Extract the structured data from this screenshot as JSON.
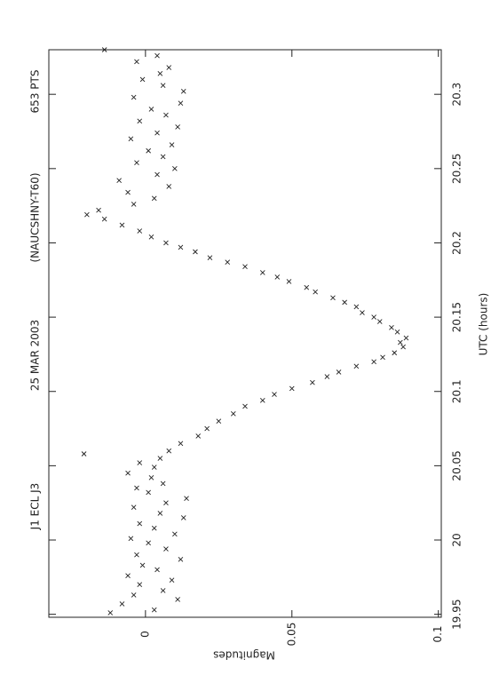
{
  "chart_data": {
    "type": "scatter",
    "title": "J1 ECL J3",
    "annotations": [
      "25 MAR 2003",
      "(NAUCSHNY-T60)",
      "653 PTS"
    ],
    "x_label": "UTC (hours)",
    "y_label": "Magnitudes",
    "color": "#222222",
    "xlim": [
      19.948,
      20.33
    ],
    "xticks": [
      19.95,
      20,
      20.05,
      20.1,
      20.15,
      20.2,
      20.25,
      20.3
    ],
    "ylim": [
      -0.033,
      0.101
    ],
    "yticks": [
      0,
      0.05,
      0.1
    ],
    "x": [
      19.951,
      19.953,
      19.957,
      19.96,
      19.963,
      19.966,
      19.97,
      19.973,
      19.976,
      19.98,
      19.983,
      19.987,
      19.99,
      19.994,
      19.998,
      20.001,
      20.004,
      20.008,
      20.011,
      20.015,
      20.018,
      20.022,
      20.025,
      20.028,
      20.032,
      20.035,
      20.038,
      20.042,
      20.045,
      20.049,
      20.052,
      20.055,
      20.058,
      20.06,
      20.065,
      20.07,
      20.075,
      20.08,
      20.085,
      20.09,
      20.094,
      20.098,
      20.102,
      20.106,
      20.11,
      20.113,
      20.117,
      20.12,
      20.123,
      20.126,
      20.13,
      20.133,
      20.136,
      20.14,
      20.143,
      20.147,
      20.15,
      20.153,
      20.157,
      20.16,
      20.163,
      20.167,
      20.17,
      20.174,
      20.177,
      20.18,
      20.184,
      20.187,
      20.19,
      20.194,
      20.197,
      20.2,
      20.204,
      20.208,
      20.212,
      20.216,
      20.219,
      20.222,
      20.226,
      20.23,
      20.234,
      20.238,
      20.242,
      20.246,
      20.25,
      20.254,
      20.258,
      20.262,
      20.266,
      20.27,
      20.274,
      20.278,
      20.282,
      20.286,
      20.29,
      20.294,
      20.298,
      20.302,
      20.306,
      20.31,
      20.314,
      20.318,
      20.322,
      20.326,
      20.33
    ],
    "values": [
      -0.012,
      0.003,
      -0.008,
      0.011,
      -0.004,
      0.006,
      -0.002,
      0.009,
      -0.006,
      0.004,
      -0.001,
      0.012,
      -0.003,
      0.007,
      0.001,
      -0.005,
      0.01,
      0.003,
      -0.002,
      0.013,
      0.005,
      -0.004,
      0.007,
      0.014,
      0.001,
      -0.003,
      0.006,
      0.002,
      -0.006,
      0.003,
      -0.002,
      0.005,
      -0.021,
      0.008,
      0.012,
      0.018,
      0.021,
      0.025,
      0.03,
      0.034,
      0.04,
      0.044,
      0.05,
      0.057,
      0.062,
      0.066,
      0.072,
      0.078,
      0.081,
      0.085,
      0.088,
      0.087,
      0.089,
      0.086,
      0.084,
      0.08,
      0.078,
      0.074,
      0.072,
      0.068,
      0.064,
      0.058,
      0.055,
      0.049,
      0.045,
      0.04,
      0.034,
      0.028,
      0.022,
      0.017,
      0.012,
      0.007,
      0.002,
      -0.002,
      -0.008,
      -0.014,
      -0.02,
      -0.016,
      -0.004,
      0.003,
      -0.006,
      0.008,
      -0.009,
      0.004,
      0.01,
      -0.003,
      0.006,
      0.001,
      0.009,
      -0.005,
      0.004,
      0.011,
      -0.002,
      0.007,
      0.002,
      0.012,
      -0.004,
      0.013,
      0.006,
      -0.001,
      0.005,
      0.008,
      -0.003,
      0.004,
      -0.014
    ]
  }
}
